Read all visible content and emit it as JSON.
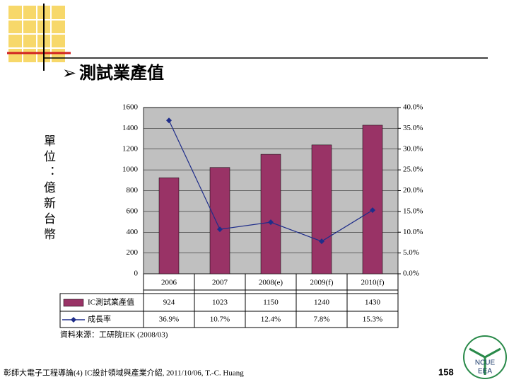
{
  "slide": {
    "title": "測試業產值",
    "footer": "彰師大電子工程導論(4) IC設計領域與產業介紹, 2011/10/06, T.-C. Huang",
    "page_number": "158",
    "logo": [
      "NCUE",
      "EEA"
    ]
  },
  "chart_data": {
    "type": "bar",
    "y_label": "單位：億新台幣",
    "source": "資料來源：工研院IEK (2008/03)",
    "categories": [
      "2006",
      "2007",
      "2008(e)",
      "2009(f)",
      "2010(f)"
    ],
    "series": [
      {
        "name": "IC測試業產值",
        "type": "bar",
        "color": "#993366",
        "values": [
          924,
          1023,
          1150,
          1240,
          1430
        ]
      },
      {
        "name": "成長率",
        "type": "line",
        "axis": "y2",
        "color": "#1f2d8a",
        "values": [
          36.9,
          10.7,
          12.4,
          7.8,
          15.3
        ],
        "value_labels": [
          "36.9%",
          "10.7%",
          "12.4%",
          "7.8%",
          "15.3%"
        ]
      }
    ],
    "ylim": [
      0,
      1600
    ],
    "yticks": [
      0,
      200,
      400,
      600,
      800,
      1000,
      1200,
      1400,
      1600
    ],
    "y2lim": [
      0,
      40
    ],
    "y2ticks": [
      {
        "value": 0,
        "label": "0.0%"
      },
      {
        "value": 5,
        "label": "5.0%"
      },
      {
        "value": 10,
        "label": "10.0%"
      },
      {
        "value": 15,
        "label": "15.0%"
      },
      {
        "value": 20,
        "label": "20.0%"
      },
      {
        "value": 25,
        "label": "25.0%"
      },
      {
        "value": 30,
        "label": "30.0%"
      },
      {
        "value": 35,
        "label": "35.0%"
      },
      {
        "value": 40,
        "label": "40.0%"
      }
    ],
    "grid": true
  }
}
